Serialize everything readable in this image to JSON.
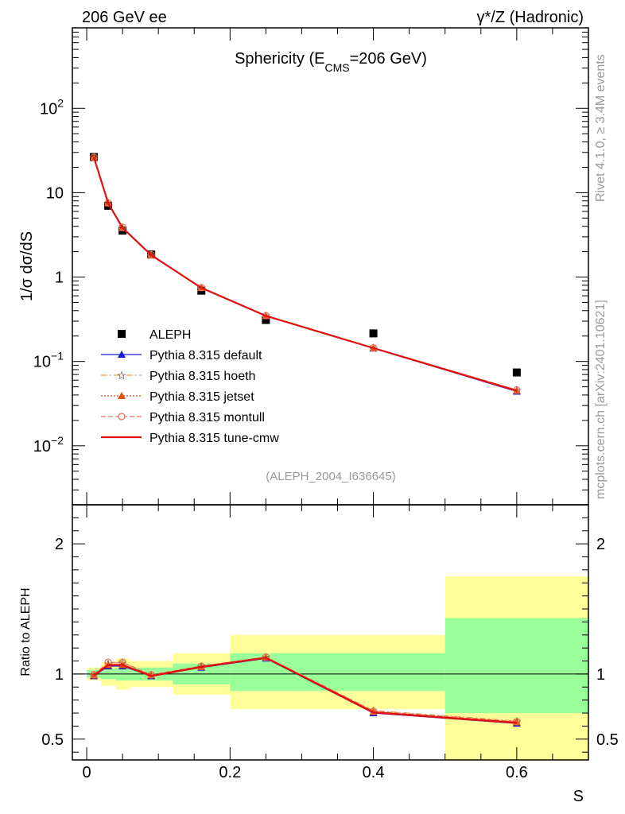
{
  "header": {
    "left": "206 GeV ee",
    "right": "γ*/Z (Hadronic)"
  },
  "side_labels": {
    "rivet": "Rivet 4.1.0, ≥ 3.4M events",
    "mcplots": "mcplots.cern.ch [arXiv:2401.10621]"
  },
  "analysis_ref": "(ALEPH_2004_I636645)",
  "chart_data": [
    {
      "type": "line",
      "panel": "main",
      "title": "Sphericity (E",
      "title_sub": "CMS",
      "title_end": "=206 GeV)",
      "ylabel": "1/σ  dσ/dS",
      "yscale": "log",
      "ylim": [
        0.002,
        900
      ],
      "xlim": [
        -0.02,
        0.7
      ],
      "ytick_labels": [
        {
          "value": 100,
          "base": "10",
          "exp": "2"
        },
        {
          "value": 10,
          "base": "10",
          "exp": ""
        },
        {
          "value": 1,
          "base": "1",
          "exp": ""
        },
        {
          "value": 0.1,
          "base": "10",
          "exp": "−1"
        },
        {
          "value": 0.01,
          "base": "10",
          "exp": "−2"
        }
      ],
      "x": [
        0.01,
        0.03,
        0.05,
        0.09,
        0.16,
        0.25,
        0.4,
        0.6
      ],
      "series": [
        {
          "name": "ALEPH",
          "values": [
            26.5,
            7.0,
            3.55,
            1.85,
            0.69,
            0.31,
            0.215,
            0.074
          ],
          "color": "#000000",
          "marker": "square"
        },
        {
          "name": "Pythia 8.315 default",
          "values": [
            26.2,
            7.5,
            3.8,
            1.82,
            0.74,
            0.345,
            0.143,
            0.044
          ],
          "color": "#1a1ad6",
          "marker": "triangle"
        },
        {
          "name": "Pythia 8.315 hoeth",
          "values": [
            26.3,
            7.55,
            3.85,
            1.83,
            0.75,
            0.35,
            0.145,
            0.046
          ],
          "color": "#e8a060",
          "marker": "star"
        },
        {
          "name": "Pythia 8.315 jetset",
          "values": [
            26.3,
            7.5,
            3.82,
            1.82,
            0.745,
            0.347,
            0.144,
            0.045
          ],
          "color": "#e05010",
          "marker": "triangle"
        },
        {
          "name": "Pythia 8.315 montull",
          "values": [
            26.4,
            7.6,
            3.9,
            1.84,
            0.75,
            0.35,
            0.145,
            0.046
          ],
          "color": "#e87050",
          "marker": "circle"
        },
        {
          "name": "Pythia 8.315 tune-cmw",
          "values": [
            26.3,
            7.5,
            3.84,
            1.82,
            0.745,
            0.347,
            0.144,
            0.045
          ],
          "color": "#e01010",
          "marker": "none"
        }
      ]
    },
    {
      "type": "line",
      "panel": "ratio",
      "ylabel": "Ratio to ALEPH",
      "xlabel": "S",
      "ylim": [
        0.34,
        2.3
      ],
      "xlim": [
        -0.02,
        0.7
      ],
      "xtick_labels": [
        "0",
        "0.2",
        "0.4",
        "0.6"
      ],
      "ytick_labels": [
        "2",
        "1",
        "0.5"
      ],
      "bins": [
        {
          "lo": 0.0,
          "hi": 0.02,
          "stat": [
            0.97,
            1.03
          ],
          "total": [
            0.95,
            1.05
          ]
        },
        {
          "lo": 0.02,
          "hi": 0.04,
          "stat": [
            0.96,
            1.04
          ],
          "total": [
            0.91,
            1.09
          ]
        },
        {
          "lo": 0.04,
          "hi": 0.06,
          "stat": [
            0.95,
            1.05
          ],
          "total": [
            0.88,
            1.12
          ]
        },
        {
          "lo": 0.06,
          "hi": 0.12,
          "stat": [
            0.95,
            1.05
          ],
          "total": [
            0.9,
            1.1
          ]
        },
        {
          "lo": 0.12,
          "hi": 0.2,
          "stat": [
            0.92,
            1.08
          ],
          "total": [
            0.84,
            1.16
          ]
        },
        {
          "lo": 0.2,
          "hi": 0.3,
          "stat": [
            0.87,
            1.16
          ],
          "total": [
            0.73,
            1.3
          ]
        },
        {
          "lo": 0.3,
          "hi": 0.5,
          "stat": [
            0.87,
            1.16
          ],
          "total": [
            0.73,
            1.3
          ]
        },
        {
          "lo": 0.5,
          "hi": 0.7,
          "stat": [
            0.7,
            1.43
          ],
          "total": [
            0.34,
            1.75
          ]
        }
      ],
      "x": [
        0.01,
        0.03,
        0.05,
        0.09,
        0.16,
        0.25,
        0.4,
        0.6
      ],
      "series": [
        {
          "name": "Pythia 8.315 default",
          "values": [
            0.985,
            1.06,
            1.06,
            0.985,
            1.05,
            1.12,
            0.7,
            0.62
          ],
          "color": "#1a1ad6"
        },
        {
          "name": "Pythia 8.315 hoeth",
          "values": [
            0.99,
            1.08,
            1.09,
            0.99,
            1.06,
            1.13,
            0.72,
            0.64
          ],
          "color": "#e8a060"
        },
        {
          "name": "Pythia 8.315 jetset",
          "values": [
            0.99,
            1.07,
            1.07,
            0.99,
            1.055,
            1.125,
            0.71,
            0.63
          ],
          "color": "#e05010"
        },
        {
          "name": "Pythia 8.315 montull",
          "values": [
            0.995,
            1.09,
            1.09,
            0.995,
            1.06,
            1.13,
            0.715,
            0.635
          ],
          "color": "#e87050"
        },
        {
          "name": "Pythia 8.315 tune-cmw",
          "values": [
            0.99,
            1.07,
            1.07,
            0.985,
            1.055,
            1.125,
            0.705,
            0.625
          ],
          "color": "#e01010"
        }
      ],
      "colors": {
        "stat": "#99ff99",
        "total": "#ffff99"
      }
    }
  ]
}
